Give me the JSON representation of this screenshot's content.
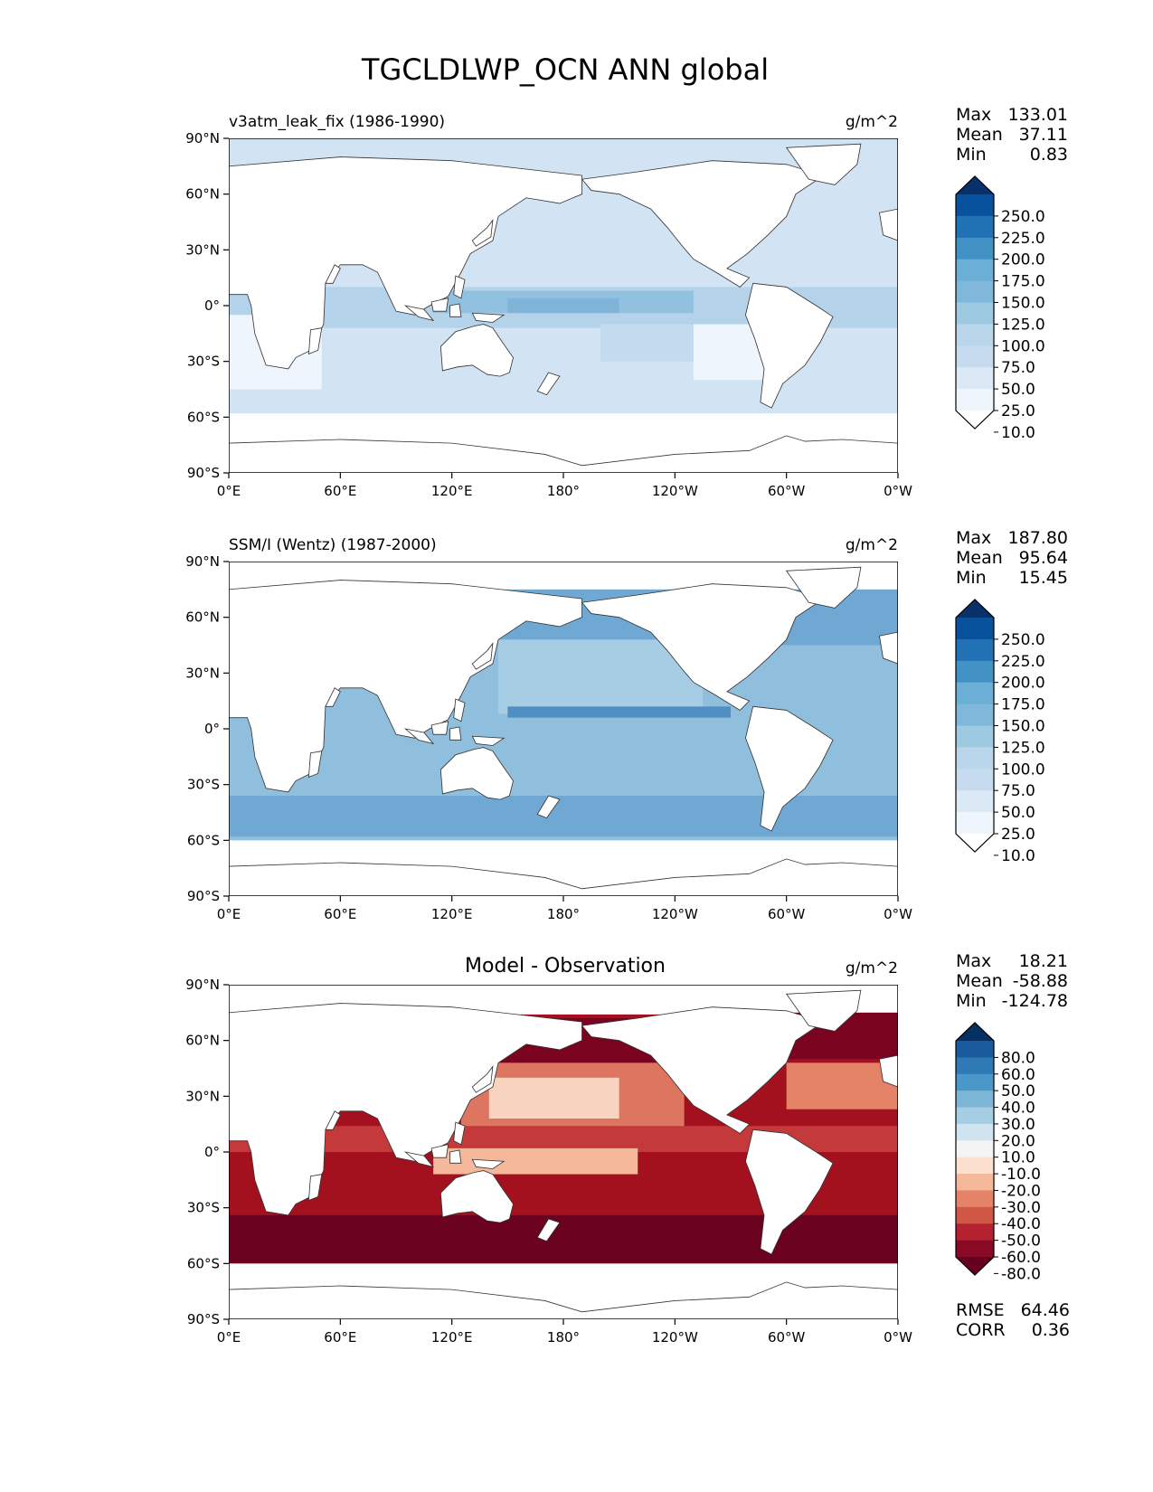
{
  "title": "TGCLDLWP_OCN ANN global",
  "chart_data": [
    {
      "type": "heatmap",
      "subtitle": "v3atm_leak_fix (1986-1990)",
      "units": "g/m^2",
      "stats": [
        {
          "label": "Max",
          "value": "133.01"
        },
        {
          "label": "Mean",
          "value": "37.11"
        },
        {
          "label": "Min",
          "value": "0.83"
        }
      ],
      "xlim": [
        0,
        360
      ],
      "ylim": [
        -90,
        90
      ],
      "xticks": [
        "0°E",
        "60°E",
        "120°E",
        "180°",
        "120°W",
        "60°W",
        "0°W"
      ],
      "yticks": [
        "90°N",
        "60°N",
        "30°N",
        "0°",
        "30°S",
        "60°S",
        "90°S"
      ],
      "colorbar_labels": [
        "250.0",
        "225.0",
        "200.0",
        "175.0",
        "150.0",
        "125.0",
        "100.0",
        "75.0",
        "50.0",
        "25.0",
        "10.0"
      ],
      "colorbar_colors": [
        "#08306b",
        "#08519c",
        "#2171b5",
        "#4292c6",
        "#6baed6",
        "#7fb8da",
        "#9ecae1",
        "#b9d6ea",
        "#c6dbef",
        "#dbe9f6",
        "#eef5fc",
        "#ffffff"
      ]
    },
    {
      "type": "heatmap",
      "subtitle": "SSM/I (Wentz) (1987-2000)",
      "units": "g/m^2",
      "stats": [
        {
          "label": "Max",
          "value": "187.80"
        },
        {
          "label": "Mean",
          "value": "95.64"
        },
        {
          "label": "Min",
          "value": "15.45"
        }
      ],
      "xlim": [
        0,
        360
      ],
      "ylim": [
        -90,
        90
      ],
      "xticks": [
        "0°E",
        "60°E",
        "120°E",
        "180°",
        "120°W",
        "60°W",
        "0°W"
      ],
      "yticks": [
        "90°N",
        "60°N",
        "30°N",
        "0°",
        "30°S",
        "60°S",
        "90°S"
      ],
      "colorbar_labels": [
        "250.0",
        "225.0",
        "200.0",
        "175.0",
        "150.0",
        "125.0",
        "100.0",
        "75.0",
        "50.0",
        "25.0",
        "10.0"
      ],
      "colorbar_colors": [
        "#08306b",
        "#08519c",
        "#2171b5",
        "#4292c6",
        "#6baed6",
        "#7fb8da",
        "#9ecae1",
        "#b9d6ea",
        "#c6dbef",
        "#dbe9f6",
        "#eef5fc",
        "#ffffff"
      ]
    },
    {
      "type": "heatmap",
      "subtitle": "Model - Observation",
      "units": "g/m^2",
      "stats": [
        {
          "label": "Max",
          "value": "18.21"
        },
        {
          "label": "Mean",
          "value": "-58.88"
        },
        {
          "label": "Min",
          "value": "-124.78"
        }
      ],
      "rmse": {
        "label": "RMSE",
        "value": "64.46"
      },
      "corr": {
        "label": "CORR",
        "value": "0.36"
      },
      "xlim": [
        0,
        360
      ],
      "ylim": [
        -90,
        90
      ],
      "xticks": [
        "0°E",
        "60°E",
        "120°E",
        "180°",
        "120°W",
        "60°W",
        "0°W"
      ],
      "yticks": [
        "90°N",
        "60°N",
        "30°N",
        "0°",
        "30°S",
        "60°S",
        "90°S"
      ],
      "colorbar_labels": [
        "80.0",
        "60.0",
        "50.0",
        "40.0",
        "30.0",
        "20.0",
        "10.0",
        "-10.0",
        "-20.0",
        "-30.0",
        "-40.0",
        "-50.0",
        "-60.0",
        "-80.0"
      ],
      "colorbar_colors": [
        "#053061",
        "#1a5a9c",
        "#2f79b5",
        "#4a98c9",
        "#7bb6d6",
        "#a6cee3",
        "#d0e4ef",
        "#f4f4f4",
        "#fbe0cf",
        "#f5b89a",
        "#e58368",
        "#d05645",
        "#b42231",
        "#8a0a25",
        "#67001f"
      ]
    }
  ]
}
